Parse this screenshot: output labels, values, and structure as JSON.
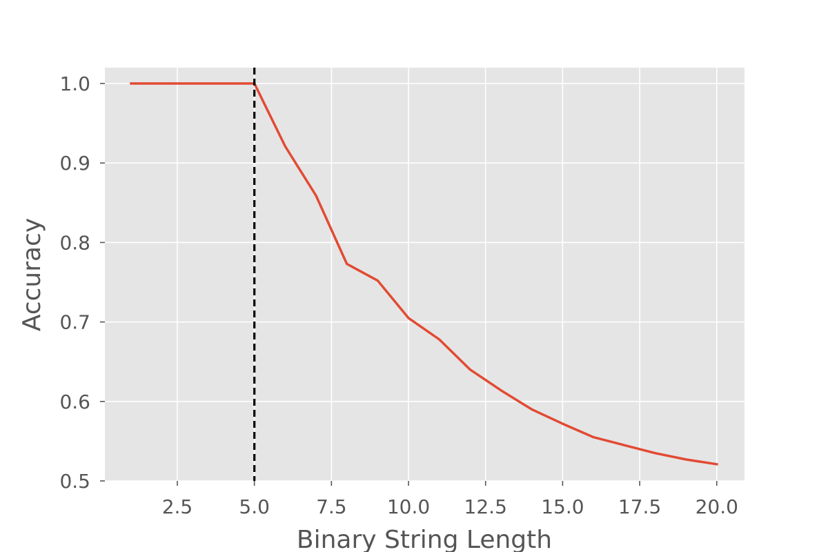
{
  "chart_data": {
    "type": "line",
    "title": "",
    "xlabel": "Binary String Length",
    "ylabel": "Accuracy",
    "xlim": [
      0.15,
      20.9
    ],
    "ylim": [
      0.5,
      1.02
    ],
    "grid": true,
    "x_ticks": [
      2.5,
      5.0,
      7.5,
      10.0,
      12.5,
      15.0,
      17.5,
      20.0
    ],
    "x_tick_labels": [
      "2.5",
      "5.0",
      "7.5",
      "10.0",
      "12.5",
      "15.0",
      "17.5",
      "20.0"
    ],
    "y_ticks": [
      0.5,
      0.6,
      0.7,
      0.8,
      0.9,
      1.0
    ],
    "y_tick_labels": [
      "0.5",
      "0.6",
      "0.7",
      "0.8",
      "0.9",
      "1.0"
    ],
    "series": [
      {
        "color": "#e24a33",
        "x": [
          1,
          2,
          3,
          4,
          5,
          6,
          7,
          8,
          9,
          10,
          11,
          12,
          13,
          14,
          15,
          16,
          17,
          18,
          19,
          20
        ],
        "y": [
          1.0,
          1.0,
          1.0,
          1.0,
          1.0,
          0.921,
          0.859,
          0.773,
          0.752,
          0.705,
          0.678,
          0.64,
          0.614,
          0.59,
          0.572,
          0.555,
          0.545,
          0.535,
          0.527,
          0.521
        ]
      }
    ],
    "vertical_line": {
      "x": 5.0,
      "style": "dashed",
      "color": "#000000"
    },
    "colors": {
      "plot_background": "#e5e5e5",
      "grid": "#ffffff",
      "text": "#555555"
    }
  }
}
